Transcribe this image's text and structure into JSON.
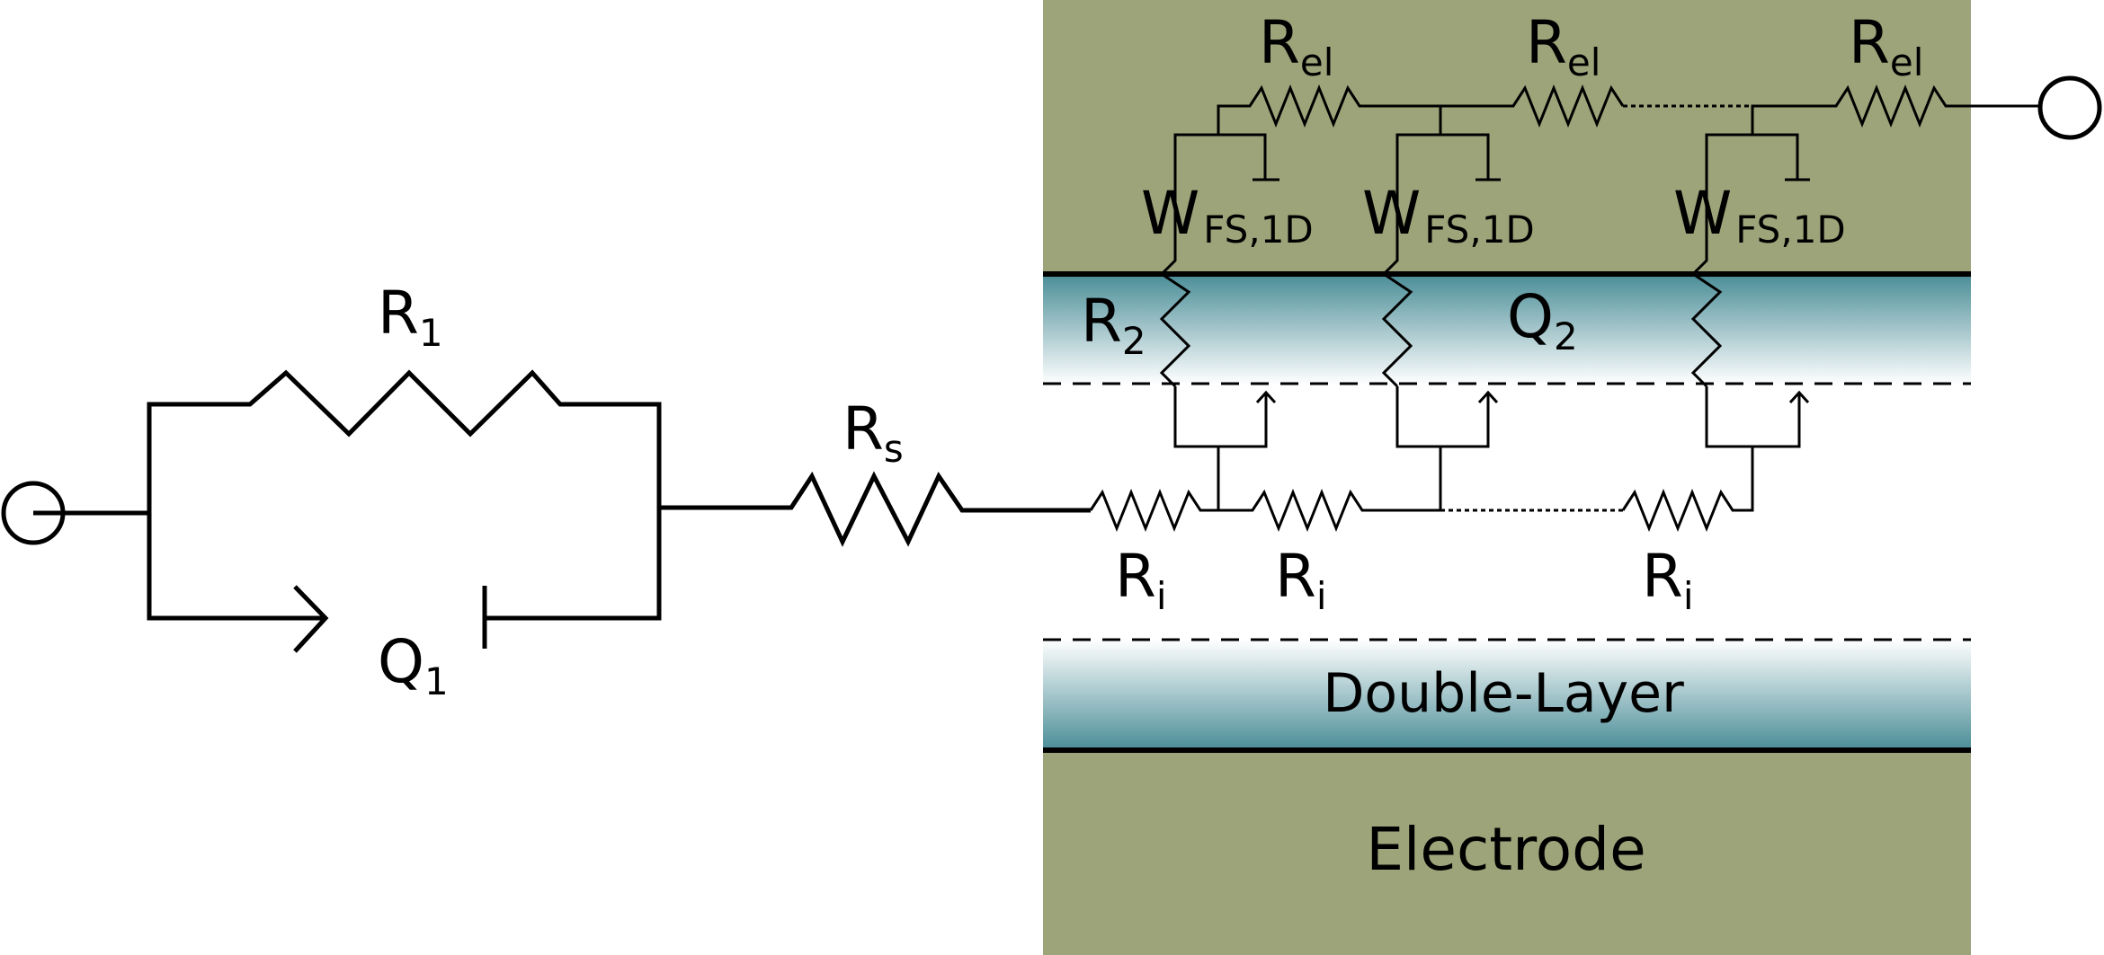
{
  "diagram": {
    "components": {
      "r1": {
        "symbol": "R",
        "subscript": "1"
      },
      "q1": {
        "symbol": "Q",
        "subscript": "1"
      },
      "rs": {
        "symbol": "R",
        "subscript": "s"
      },
      "r2": {
        "symbol": "R",
        "subscript": "2"
      },
      "q2": {
        "symbol": "Q",
        "subscript": "2"
      },
      "rel": {
        "symbol": "R",
        "subscript": "el"
      },
      "ri": {
        "symbol": "R",
        "subscript": "i"
      },
      "wfs": {
        "symbol": "W",
        "subscript": "FS,1D"
      }
    },
    "regions": {
      "double_layer": "Double-Layer",
      "electrode": "Electrode"
    },
    "colors": {
      "electrode_fill": "#9ea47a",
      "layer_dark": "#4a8d97",
      "layer_light": "#ffffff",
      "wire": "#000000"
    }
  }
}
